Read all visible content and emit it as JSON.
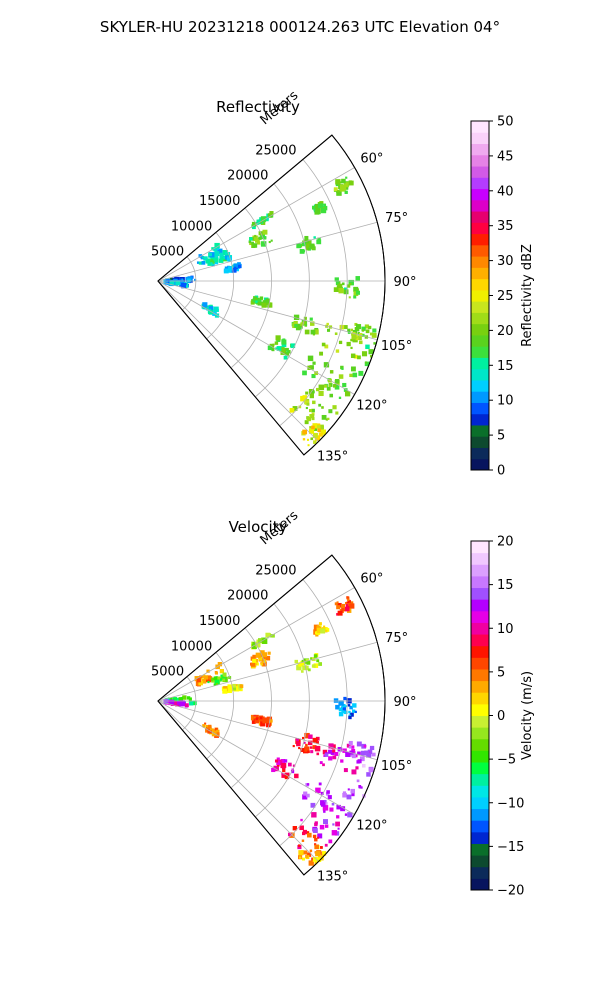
{
  "figure": {
    "suptitle": "SKYLER-HU  20231218  000124.263 UTC Elevation 04°"
  },
  "colors": {
    "reflectivity": [
      "#07145e",
      "#0b2a5a",
      "#0d4a2f",
      "#0a6f2a",
      "#0026d0",
      "#0055ff",
      "#0099ff",
      "#00cfff",
      "#00e6c8",
      "#00f0a0",
      "#3ce03c",
      "#5ad21e",
      "#78d010",
      "#a0dc18",
      "#c8e61e",
      "#f0f000",
      "#ffd700",
      "#ffb000",
      "#ff8800",
      "#ff5a00",
      "#ff1e00",
      "#ff0040",
      "#e6006e",
      "#dc00c8",
      "#c800ff",
      "#b43cff",
      "#d25ae6",
      "#e682e6",
      "#f0aaf0",
      "#fad2fa",
      "#ffe6ff"
    ],
    "velocity": [
      "#07145e",
      "#0b2a5a",
      "#0d4a2f",
      "#0a6f2a",
      "#0026d0",
      "#0055ff",
      "#0099ff",
      "#00cfff",
      "#00e6e6",
      "#00f0a0",
      "#00ff40",
      "#32e600",
      "#64dc00",
      "#96e61e",
      "#c8f032",
      "#ffff00",
      "#ffd700",
      "#ffaa00",
      "#ff7800",
      "#ff4600",
      "#ff1400",
      "#ff0050",
      "#f000a0",
      "#e600e6",
      "#b400ff",
      "#a050ff",
      "#c878ff",
      "#dca0ff",
      "#f0c8ff",
      "#ffe6ff"
    ]
  },
  "chart_data": [
    {
      "type": "heatmap",
      "panel": "reflectivity",
      "title": "Reflectivity",
      "radial_label": "Meters",
      "radial_ticks": [
        5000,
        10000,
        15000,
        20000,
        25000
      ],
      "radial_tick_labels": [
        "5000",
        "10000",
        "15000",
        "20000",
        "25000"
      ],
      "r_max": 30000,
      "theta_range": [
        50,
        140
      ],
      "theta_ticks": [
        60,
        75,
        90,
        105,
        120,
        135
      ],
      "theta_tick_labels": [
        "60°",
        "75°",
        "90°",
        "105°",
        "120°",
        "135°"
      ],
      "grid": true,
      "colorbar": {
        "label": "Reflectivity dBZ",
        "min": 0,
        "max": 50,
        "ticks": [
          0,
          5,
          10,
          15,
          20,
          25,
          30,
          35,
          40,
          45,
          50
        ],
        "tick_labels": [
          "0",
          "5",
          "10",
          "15",
          "20",
          "25",
          "30",
          "35",
          "40",
          "45",
          "50"
        ]
      },
      "echoes": [
        {
          "az": 63,
          "r": 27500,
          "daz": 2.0,
          "dr": 1200,
          "value": 20
        },
        {
          "az": 66,
          "r": 23500,
          "daz": 1.5,
          "dr": 800,
          "value": 18
        },
        {
          "az": 60,
          "r": 16000,
          "daz": 1.0,
          "dr": 1500,
          "value": 17
        },
        {
          "az": 68,
          "r": 14500,
          "daz": 3.0,
          "dr": 1500,
          "value": 19
        },
        {
          "az": 76,
          "r": 20500,
          "daz": 2.5,
          "dr": 1500,
          "value": 18
        },
        {
          "az": 64,
          "r": 8000,
          "daz": 5.0,
          "dr": 2200,
          "value": 13
        },
        {
          "az": 71,
          "r": 8500,
          "daz": 3.0,
          "dr": 1500,
          "value": 14
        },
        {
          "az": 80,
          "r": 10000,
          "daz": 2.0,
          "dr": 1200,
          "value": 11
        },
        {
          "az": 89,
          "r": 3000,
          "daz": 7.0,
          "dr": 2000,
          "value": 9
        },
        {
          "az": 97,
          "r": 2500,
          "daz": 4.0,
          "dr": 1500,
          "value": 11
        },
        {
          "az": 92,
          "r": 25000,
          "daz": 3.0,
          "dr": 1500,
          "value": 19
        },
        {
          "az": 101,
          "r": 14000,
          "daz": 2.0,
          "dr": 1200,
          "value": 18
        },
        {
          "az": 104,
          "r": 27500,
          "daz": 2.0,
          "dr": 2000,
          "value": 20
        },
        {
          "az": 106,
          "r": 20500,
          "daz": 3.0,
          "dr": 1800,
          "value": 19
        },
        {
          "az": 108,
          "r": 25500,
          "daz": 4.0,
          "dr": 2500,
          "value": 22
        },
        {
          "az": 111,
          "r": 30000,
          "daz": 5.0,
          "dr": 1800,
          "value": 19
        },
        {
          "az": 118,
          "r": 19000,
          "daz": 3.0,
          "dr": 1800,
          "value": 18
        },
        {
          "az": 119,
          "r": 25500,
          "daz": 5.0,
          "dr": 3000,
          "value": 19
        },
        {
          "az": 125,
          "r": 27000,
          "daz": 5.0,
          "dr": 2500,
          "value": 20
        },
        {
          "az": 132,
          "r": 27000,
          "daz": 4.0,
          "dr": 2500,
          "value": 22
        },
        {
          "az": 135,
          "r": 29000,
          "daz": 3.0,
          "dr": 1500,
          "value": 26
        },
        {
          "az": 118,
          "r": 8000,
          "daz": 3.0,
          "dr": 1200,
          "value": 13
        }
      ]
    },
    {
      "type": "heatmap",
      "panel": "velocity",
      "title": "Velocity",
      "radial_label": "Meters",
      "radial_ticks": [
        5000,
        10000,
        15000,
        20000,
        25000
      ],
      "radial_tick_labels": [
        "5000",
        "10000",
        "15000",
        "20000",
        "25000"
      ],
      "r_max": 30000,
      "theta_range": [
        50,
        140
      ],
      "theta_ticks": [
        60,
        75,
        90,
        105,
        120,
        135
      ],
      "theta_tick_labels": [
        "60°",
        "75°",
        "90°",
        "105°",
        "120°",
        "135°"
      ],
      "grid": true,
      "colorbar": {
        "label": "Velocity (m/s)",
        "min": -20,
        "max": 20,
        "ticks": [
          -20,
          -15,
          -10,
          -5,
          0,
          5,
          10,
          15,
          20
        ],
        "tick_labels": [
          "−20",
          "−15",
          "−10",
          "−5",
          "0",
          "5",
          "10",
          "15",
          "20"
        ]
      },
      "echoes": [
        {
          "az": 63,
          "r": 27500,
          "daz": 2.0,
          "dr": 1200,
          "value": 6
        },
        {
          "az": 66,
          "r": 23500,
          "daz": 1.5,
          "dr": 800,
          "value": 2
        },
        {
          "az": 60,
          "r": 16000,
          "daz": 1.0,
          "dr": 1500,
          "value": -2
        },
        {
          "az": 68,
          "r": 14500,
          "daz": 3.0,
          "dr": 1500,
          "value": 3
        },
        {
          "az": 76,
          "r": 20500,
          "daz": 2.5,
          "dr": 1500,
          "value": -1
        },
        {
          "az": 64,
          "r": 8000,
          "daz": 5.0,
          "dr": 2200,
          "value": 4
        },
        {
          "az": 71,
          "r": 8500,
          "daz": 3.0,
          "dr": 1500,
          "value": -4
        },
        {
          "az": 80,
          "r": 10000,
          "daz": 2.0,
          "dr": 1200,
          "value": 1
        },
        {
          "az": 89,
          "r": 3000,
          "daz": 7.0,
          "dr": 2000,
          "value": -6
        },
        {
          "az": 97,
          "r": 2500,
          "daz": 4.0,
          "dr": 1500,
          "value": 12
        },
        {
          "az": 92,
          "r": 25000,
          "daz": 3.0,
          "dr": 1500,
          "value": -12
        },
        {
          "az": 101,
          "r": 14000,
          "daz": 2.0,
          "dr": 1200,
          "value": 6
        },
        {
          "az": 104,
          "r": 27500,
          "daz": 2.0,
          "dr": 2000,
          "value": 13
        },
        {
          "az": 106,
          "r": 20500,
          "daz": 3.0,
          "dr": 1800,
          "value": 8
        },
        {
          "az": 108,
          "r": 25500,
          "daz": 4.0,
          "dr": 2500,
          "value": 11
        },
        {
          "az": 111,
          "r": 30000,
          "daz": 5.0,
          "dr": 1800,
          "value": 15
        },
        {
          "az": 118,
          "r": 19000,
          "daz": 3.0,
          "dr": 1800,
          "value": 10
        },
        {
          "az": 119,
          "r": 25500,
          "daz": 5.0,
          "dr": 3000,
          "value": 14
        },
        {
          "az": 125,
          "r": 27000,
          "daz": 5.0,
          "dr": 2500,
          "value": 12
        },
        {
          "az": 132,
          "r": 27000,
          "daz": 4.0,
          "dr": 2500,
          "value": 7
        },
        {
          "az": 135,
          "r": 29000,
          "daz": 3.0,
          "dr": 1500,
          "value": 3
        },
        {
          "az": 118,
          "r": 8000,
          "daz": 3.0,
          "dr": 1200,
          "value": 4
        }
      ]
    }
  ]
}
